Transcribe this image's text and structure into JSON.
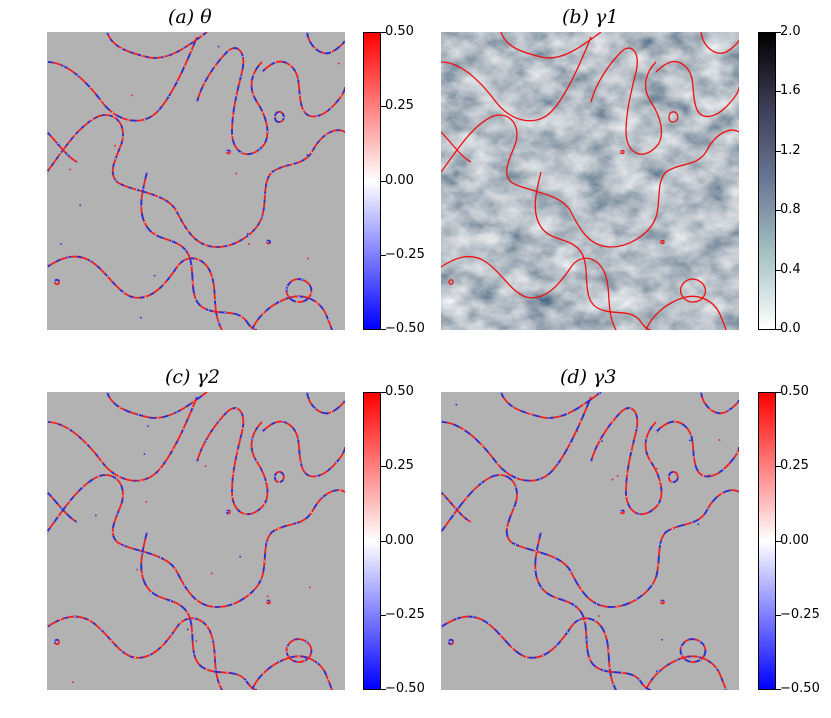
{
  "chart_data": [
    {
      "type": "heatmap",
      "title": "(a)  θ",
      "colormap": "bwr",
      "background_color": "#b2b2b2",
      "curve_color": "mixed red/blue",
      "colorbar": {
        "ticks": [
          "0.50",
          "0.25",
          "0.00",
          "−0.25",
          "−0.50"
        ],
        "range": [
          -0.5,
          0.5
        ]
      }
    },
    {
      "type": "heatmap",
      "title": "(b)  γ1",
      "colormap": "bone_r",
      "curve_color": "#ff0000",
      "colorbar": {
        "ticks": [
          "2.0",
          "1.6",
          "1.2",
          "0.8",
          "0.4",
          "0.0"
        ],
        "range": [
          0.0,
          2.0
        ]
      }
    },
    {
      "type": "heatmap",
      "title": "(c)  γ2",
      "colormap": "bwr",
      "background_color": "#b2b2b2",
      "curve_color": "mixed red/blue",
      "colorbar": {
        "ticks": [
          "0.50",
          "0.25",
          "0.00",
          "−0.25",
          "−0.50"
        ],
        "range": [
          -0.5,
          0.5
        ]
      }
    },
    {
      "type": "heatmap",
      "title": "(d)  γ3",
      "colormap": "bwr",
      "background_color": "#b2b2b2",
      "curve_color": "mixed red/blue",
      "colorbar": {
        "ticks": [
          "0.50",
          "0.25",
          "0.00",
          "−0.25",
          "−0.50"
        ],
        "range": [
          -0.5,
          0.5
        ]
      }
    }
  ]
}
